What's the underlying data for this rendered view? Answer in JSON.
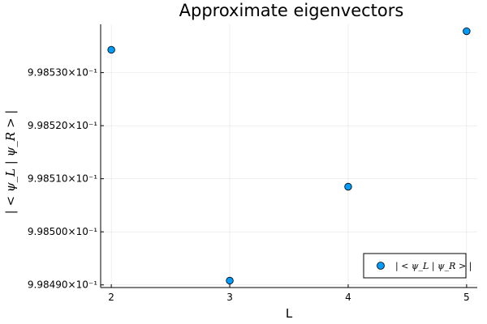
{
  "chart_data": {
    "type": "scatter",
    "title": "Approximate eigenvectors",
    "xlabel": "L",
    "ylabel": "| < ψ_L | ψ_R > |",
    "x": [
      2,
      3,
      4,
      5
    ],
    "xticks": [
      "2",
      "3",
      "4",
      "5"
    ],
    "yticks": [
      "9.98490×10⁻¹",
      "9.98500×10⁻¹",
      "9.98510×10⁻¹",
      "9.98520×10⁻¹",
      "9.98530×10⁻¹"
    ],
    "ytick_values": [
      0.99849,
      0.9985,
      0.99851,
      0.99852,
      0.99853
    ],
    "xlim": [
      1.91,
      5.09
    ],
    "ylim": [
      0.9984895,
      0.9985391
    ],
    "grid": true,
    "legend_position": "bottom-right",
    "series": [
      {
        "name": "| < ψ_L | ψ_R > |",
        "color": "#009af9",
        "values": [
          0.9985343,
          0.9984908,
          0.9985085,
          0.9985378
        ]
      }
    ]
  }
}
